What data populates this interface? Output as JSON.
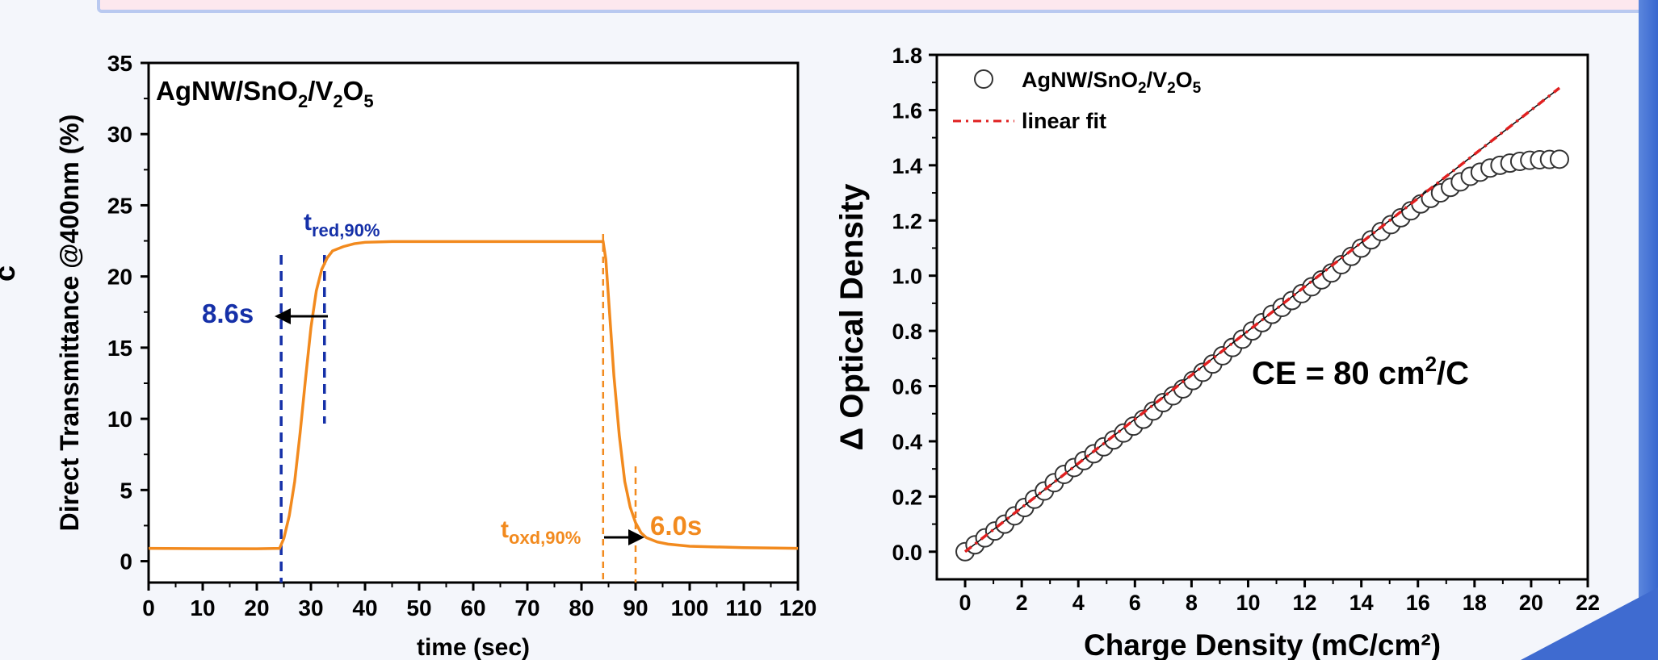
{
  "chart_data": [
    {
      "type": "line",
      "xlabel": "time (sec)",
      "ylabel": "Direct Transmittance @400nm (%)",
      "xlim": [
        0,
        120
      ],
      "ylim": [
        -1.5,
        35
      ],
      "xticks": [
        "0",
        "10",
        "20",
        "30",
        "40",
        "50",
        "60",
        "70",
        "80",
        "90",
        "100",
        "110",
        "120"
      ],
      "yticks": [
        "0",
        "5",
        "10",
        "15",
        "20",
        "25",
        "30",
        "35"
      ],
      "grid": false,
      "series": [
        {
          "name": "AgNW/SnO2/V2O5",
          "color": "#f28a1e",
          "x": [
            0,
            10,
            20,
            24.2,
            25,
            26,
            27,
            28,
            29,
            30,
            31,
            32,
            33,
            34,
            36,
            38,
            40,
            45,
            50,
            60,
            70,
            80,
            84,
            84.5,
            85,
            86,
            87,
            88,
            89,
            90,
            91,
            92,
            94,
            96,
            100,
            110,
            120
          ],
          "y": [
            0.9,
            0.88,
            0.87,
            0.9,
            1.6,
            3.2,
            5.6,
            9.0,
            12.8,
            16.4,
            19.0,
            20.5,
            21.3,
            21.8,
            22.1,
            22.3,
            22.4,
            22.45,
            22.45,
            22.45,
            22.45,
            22.45,
            22.45,
            21.2,
            18.5,
            13.0,
            8.8,
            5.6,
            3.8,
            2.7,
            2.0,
            1.65,
            1.35,
            1.2,
            1.05,
            0.95,
            0.9
          ]
        }
      ],
      "annotations": {
        "title": "AgNW/SnO2/V2O5",
        "t_red_label": "t",
        "t_red_sub": "red,90%",
        "t_red_value": "8.6s",
        "t_red_lines_x": [
          24.5,
          32.5
        ],
        "t_oxd_label": "t",
        "t_oxd_sub": "oxd,90%",
        "t_oxd_value": "6.0s",
        "t_oxd_lines_x": [
          84.0,
          90.0
        ]
      },
      "colors": {
        "reduction": "#1530a8",
        "oxidation": "#f28a1e"
      }
    },
    {
      "type": "scatter",
      "xlabel": "Charge Density (mC/cm²)",
      "ylabel": "Δ Optical Density",
      "xlim": [
        -1,
        22
      ],
      "ylim": [
        -0.1,
        1.8
      ],
      "xticks": [
        "0",
        "2",
        "4",
        "6",
        "8",
        "10",
        "12",
        "14",
        "16",
        "18",
        "20",
        "22"
      ],
      "yticks": [
        "0.0",
        "0.2",
        "0.4",
        "0.6",
        "0.8",
        "1.0",
        "1.2",
        "1.4",
        "1.6",
        "1.8"
      ],
      "grid": false,
      "legend_position": "top-left",
      "legend": [
        {
          "label": "AgNW/SnO2/V2O5",
          "marker": "open-circle"
        },
        {
          "label": "linear fit",
          "marker": "dash-dot-line"
        }
      ],
      "linear_fit": {
        "x": [
          0,
          21
        ],
        "y": [
          0.0,
          1.68
        ],
        "color": "#e02020"
      },
      "series": [
        {
          "name": "AgNW/SnO2/V2O5",
          "x": [
            0,
            0.35,
            0.7,
            1.05,
            1.4,
            1.75,
            2.1,
            2.45,
            2.8,
            3.15,
            3.5,
            3.85,
            4.2,
            4.55,
            4.9,
            5.25,
            5.6,
            5.95,
            6.3,
            6.65,
            7.0,
            7.35,
            7.7,
            8.05,
            8.4,
            8.75,
            9.1,
            9.45,
            9.8,
            10.15,
            10.5,
            10.85,
            11.2,
            11.55,
            11.9,
            12.25,
            12.6,
            12.95,
            13.3,
            13.65,
            14.0,
            14.35,
            14.7,
            15.05,
            15.4,
            15.75,
            16.1,
            16.45,
            16.8,
            17.15,
            17.5,
            17.85,
            18.2,
            18.55,
            18.9,
            19.25,
            19.6,
            19.95,
            20.3,
            20.65,
            21.0
          ],
          "y": [
            0.0,
            0.025,
            0.05,
            0.075,
            0.1,
            0.13,
            0.16,
            0.19,
            0.22,
            0.25,
            0.28,
            0.305,
            0.33,
            0.355,
            0.38,
            0.405,
            0.43,
            0.455,
            0.48,
            0.51,
            0.54,
            0.565,
            0.59,
            0.62,
            0.65,
            0.68,
            0.71,
            0.74,
            0.77,
            0.8,
            0.83,
            0.86,
            0.885,
            0.91,
            0.935,
            0.96,
            0.985,
            1.01,
            1.04,
            1.07,
            1.1,
            1.13,
            1.16,
            1.185,
            1.21,
            1.235,
            1.26,
            1.28,
            1.3,
            1.32,
            1.34,
            1.36,
            1.375,
            1.39,
            1.4,
            1.408,
            1.414,
            1.418,
            1.42,
            1.421,
            1.422
          ]
        }
      ],
      "annotation": {
        "text": "CE = 80 cm",
        "sup": "2",
        "suffix": "/C"
      }
    }
  ],
  "ui": {
    "cut_glyph": "c"
  }
}
